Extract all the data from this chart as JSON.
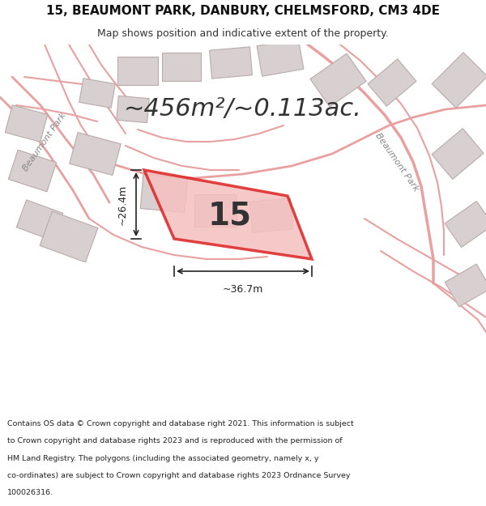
{
  "title_line1": "15, BEAUMONT PARK, DANBURY, CHELMSFORD, CM3 4DE",
  "title_line2": "Map shows position and indicative extent of the property.",
  "area_text": "~456m²/~0.113ac.",
  "number_label": "15",
  "dim_width": "~36.7m",
  "dim_height": "~26.4m",
  "footer_text": "Contains OS data © Crown copyright and database right 2021. This information is subject to Crown copyright and database rights 2023 and is reproduced with the permission of HM Land Registry. The polygons (including the associated geometry, namely x, y co-ordinates) are subject to Crown copyright and database rights 2023 Ordnance Survey 100026316.",
  "bg_color": "#f0eeee",
  "map_bg": "#f5f0f0",
  "road_color": "#e8a0a0",
  "highlight_color": "#dd2222",
  "building_color": "#d8d0d0",
  "building_edge": "#bbaaaa",
  "title_bg": "#ffffff",
  "footer_bg": "#ffffff"
}
